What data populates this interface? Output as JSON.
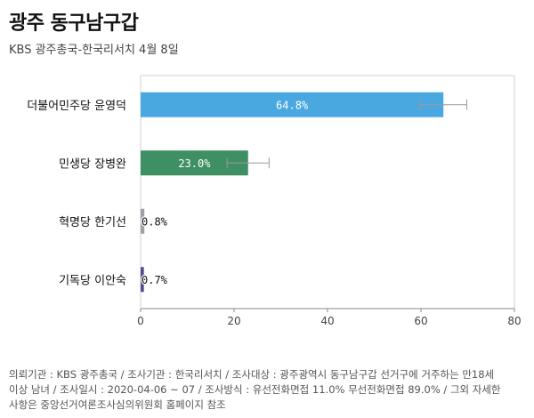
{
  "header": {
    "title": "광주 동구남구갑",
    "subtitle": "KBS 광주총국-한국리서치 4월 8일"
  },
  "chart_data": {
    "type": "bar",
    "orientation": "horizontal",
    "categories": [
      "더불어민주당 윤영덕",
      "민생당 장병완",
      "혁명당 한기선",
      "기독당 이안숙"
    ],
    "values": [
      64.8,
      23.0,
      0.8,
      0.7
    ],
    "value_labels": [
      "64.8%",
      "23.0%",
      "0.8%",
      "0.7%"
    ],
    "error_bars": [
      [
        59.8,
        69.8
      ],
      [
        18.5,
        27.5
      ],
      null,
      null
    ],
    "colors": [
      "#4aa8e0",
      "#3e8f64",
      "#a0a0a8",
      "#5a4a8a"
    ],
    "xlim": [
      0,
      80
    ],
    "xticks": [
      0,
      20,
      40,
      60,
      80
    ],
    "grid": false,
    "title": "광주 동구남구갑",
    "xlabel": "",
    "ylabel": ""
  },
  "footer": {
    "lines": [
      "의뢰기관 : KBS 광주총국 / 조사기관 : 한국리서치 / 조사대상 : 광주광역시 동구남구갑 선거구에 거주하는 만18세",
      "이상 남녀 / 조사일시 : 2020-04-06 ~ 07 / 조사방식 : 유선전화면접 11.0% 무선전화면접 89.0% / 그외 자세한",
      "사항은 중앙선거여론조사심의위원회 홈페이지 참조"
    ]
  }
}
